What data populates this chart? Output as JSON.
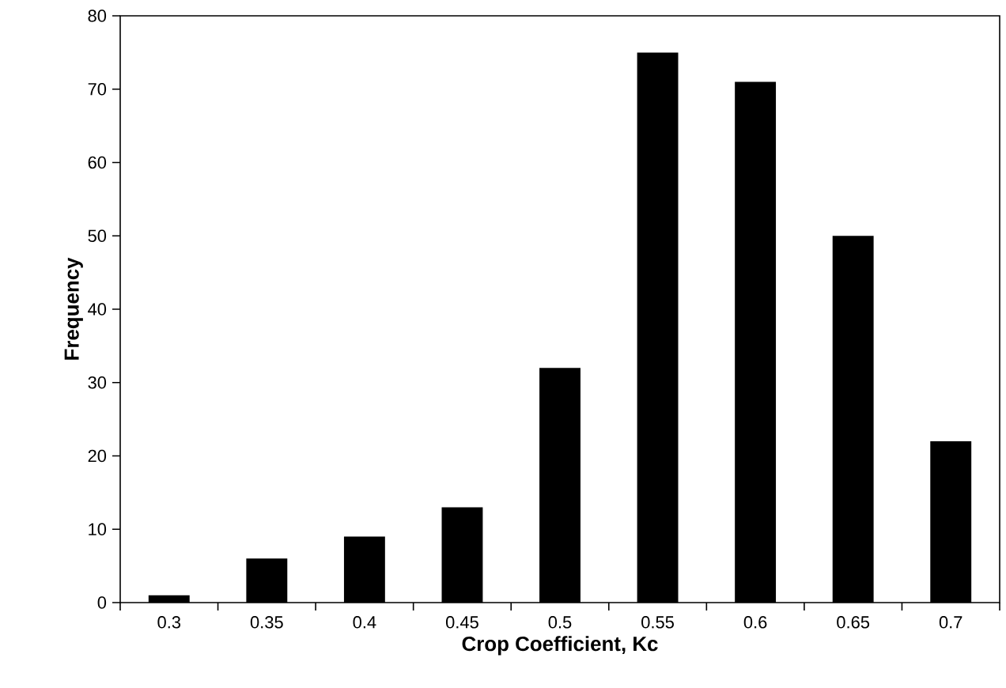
{
  "chart_data": {
    "type": "bar",
    "xlabel": "Crop Coefficient, Kc",
    "ylabel": "Frequency",
    "categories": [
      "0.3",
      "0.35",
      "0.4",
      "0.45",
      "0.5",
      "0.55",
      "0.6",
      "0.65",
      "0.7"
    ],
    "values": [
      1,
      6,
      9,
      13,
      32,
      75,
      71,
      50,
      22
    ],
    "color": "#000000",
    "ylim": [
      0,
      80
    ],
    "yticks": [
      0,
      10,
      20,
      30,
      40,
      50,
      60,
      70,
      80
    ]
  }
}
